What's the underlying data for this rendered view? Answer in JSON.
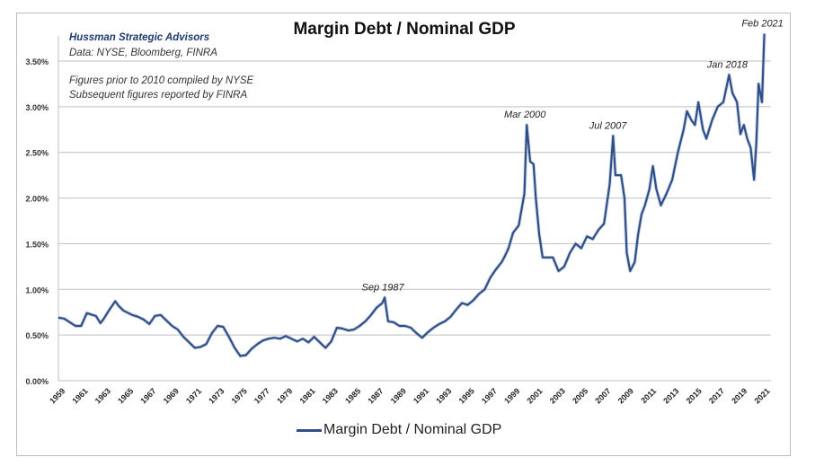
{
  "chart_data": {
    "type": "line",
    "title": "Margin Debt / Nominal GDP",
    "xlabel": "",
    "ylabel": "",
    "ylim": [
      0,
      3.5
    ],
    "xlim": [
      1959,
      2021.3
    ],
    "grid": true,
    "legend_position": "bottom",
    "y_ticks": [
      "0.00%",
      "0.50%",
      "1.00%",
      "1.50%",
      "2.00%",
      "2.50%",
      "3.00%",
      "3.50%"
    ],
    "y_tick_values": [
      0,
      0.5,
      1.0,
      1.5,
      2.0,
      2.5,
      3.0,
      3.5
    ],
    "x_ticks": [
      "1959",
      "1961",
      "1963",
      "1965",
      "1967",
      "1969",
      "1971",
      "1973",
      "1975",
      "1977",
      "1979",
      "1981",
      "1983",
      "1985",
      "1987",
      "1989",
      "1991",
      "1993",
      "1995",
      "1997",
      "1999",
      "2001",
      "2003",
      "2005",
      "2007",
      "2009",
      "2011",
      "2013",
      "2015",
      "2017",
      "2019",
      "2021"
    ],
    "series": [
      {
        "name": "Margin Debt / Nominal GDP",
        "color": "#2f4f86",
        "x": [
          1959.0,
          1959.5,
          1960.0,
          1960.5,
          1961.0,
          1961.5,
          1962.0,
          1962.3,
          1962.7,
          1963.0,
          1963.5,
          1964.0,
          1964.3,
          1964.7,
          1965.0,
          1965.5,
          1966.0,
          1966.5,
          1967.0,
          1967.5,
          1968.0,
          1968.5,
          1969.0,
          1969.5,
          1970.0,
          1970.5,
          1971.0,
          1971.5,
          1972.0,
          1972.5,
          1973.0,
          1973.5,
          1974.0,
          1974.5,
          1975.0,
          1975.5,
          1976.0,
          1976.5,
          1977.0,
          1977.5,
          1978.0,
          1978.5,
          1979.0,
          1979.5,
          1980.0,
          1980.5,
          1981.0,
          1981.5,
          1982.0,
          1982.5,
          1983.0,
          1983.5,
          1984.0,
          1984.5,
          1985.0,
          1985.5,
          1986.0,
          1986.5,
          1987.0,
          1987.5,
          1987.7,
          1988.0,
          1988.5,
          1989.0,
          1989.5,
          1990.0,
          1990.5,
          1991.0,
          1991.5,
          1992.0,
          1992.5,
          1993.0,
          1993.5,
          1994.0,
          1994.5,
          1995.0,
          1995.5,
          1996.0,
          1996.5,
          1997.0,
          1997.5,
          1998.0,
          1998.3,
          1998.6,
          1999.0,
          1999.5,
          2000.0,
          2000.2,
          2000.5,
          2000.8,
          2001.0,
          2001.3,
          2001.6,
          2002.0,
          2002.5,
          2003.0,
          2003.5,
          2004.0,
          2004.5,
          2005.0,
          2005.5,
          2006.0,
          2006.5,
          2007.0,
          2007.5,
          2007.8,
          2008.0,
          2008.5,
          2008.8,
          2009.0,
          2009.3,
          2009.7,
          2010.0,
          2010.3,
          2010.6,
          2011.0,
          2011.3,
          2011.6,
          2012.0,
          2012.5,
          2013.0,
          2013.5,
          2014.0,
          2014.3,
          2014.7,
          2015.0,
          2015.3,
          2015.7,
          2016.0,
          2016.5,
          2017.0,
          2017.5,
          2018.0,
          2018.3,
          2018.7,
          2019.0,
          2019.3,
          2019.6,
          2019.9,
          2020.2,
          2020.4,
          2020.6,
          2020.9,
          2021.1
        ],
        "y": [
          0.69,
          0.68,
          0.64,
          0.6,
          0.6,
          0.74,
          0.72,
          0.71,
          0.63,
          0.68,
          0.78,
          0.87,
          0.82,
          0.77,
          0.75,
          0.72,
          0.7,
          0.67,
          0.62,
          0.71,
          0.72,
          0.66,
          0.6,
          0.56,
          0.48,
          0.42,
          0.36,
          0.37,
          0.4,
          0.52,
          0.6,
          0.59,
          0.48,
          0.36,
          0.27,
          0.28,
          0.35,
          0.4,
          0.44,
          0.46,
          0.47,
          0.46,
          0.49,
          0.46,
          0.43,
          0.46,
          0.42,
          0.48,
          0.42,
          0.36,
          0.43,
          0.58,
          0.57,
          0.55,
          0.56,
          0.6,
          0.65,
          0.72,
          0.8,
          0.85,
          0.91,
          0.65,
          0.64,
          0.6,
          0.6,
          0.58,
          0.52,
          0.47,
          0.53,
          0.58,
          0.62,
          0.65,
          0.7,
          0.78,
          0.85,
          0.83,
          0.88,
          0.95,
          1.0,
          1.13,
          1.22,
          1.3,
          1.37,
          1.45,
          1.62,
          1.7,
          2.05,
          2.8,
          2.4,
          2.37,
          2.0,
          1.6,
          1.35,
          1.35,
          1.35,
          1.2,
          1.25,
          1.4,
          1.5,
          1.45,
          1.58,
          1.55,
          1.65,
          1.72,
          2.15,
          2.68,
          2.25,
          2.25,
          2.0,
          1.4,
          1.2,
          1.3,
          1.6,
          1.82,
          1.92,
          2.1,
          2.35,
          2.1,
          1.92,
          2.05,
          2.2,
          2.5,
          2.75,
          2.95,
          2.85,
          2.8,
          3.05,
          2.75,
          2.65,
          2.85,
          3.0,
          3.05,
          3.35,
          3.15,
          3.05,
          2.7,
          2.8,
          2.65,
          2.55,
          2.2,
          2.6,
          3.25,
          3.05,
          3.8
        ]
      }
    ],
    "annotations": [
      {
        "text": "Sep 1987",
        "x": 1987.7,
        "y": 0.91
      },
      {
        "text": "Mar 2000",
        "x": 2000.2,
        "y": 2.8
      },
      {
        "text": "Jul 2007",
        "x": 2007.5,
        "y": 2.68
      },
      {
        "text": "Jan 2018",
        "x": 2018.0,
        "y": 3.35
      },
      {
        "text": "Feb 2021",
        "x": 2021.1,
        "y": 3.8
      }
    ]
  },
  "notes": {
    "source_name": "Hussman Strategic Advisors",
    "data_source": "Data: NYSE, Bloomberg, FINRA",
    "compilation_line1": "Figures prior to 2010 compiled by NYSE",
    "compilation_line2": "Subsequent figures reported by FINRA"
  },
  "legend": {
    "label": "Margin Debt / Nominal GDP"
  }
}
